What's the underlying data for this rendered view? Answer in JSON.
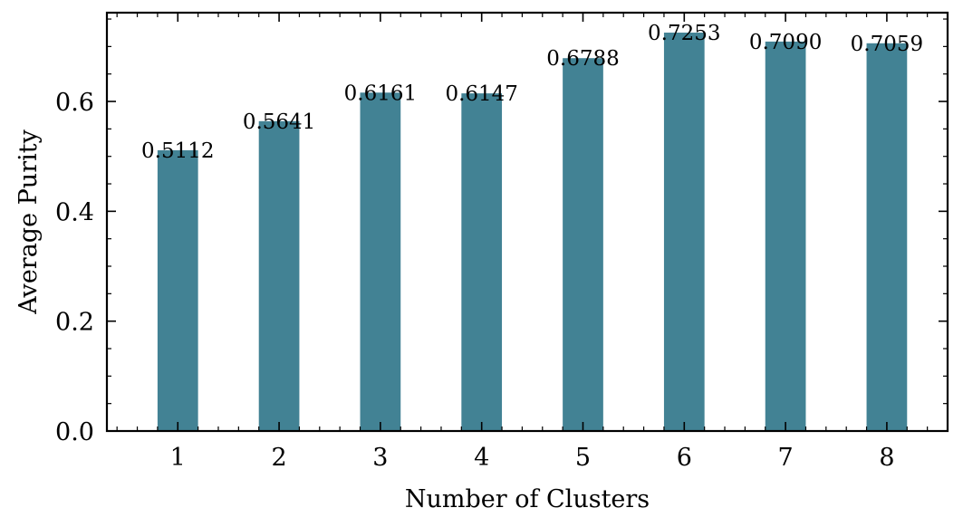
{
  "chart_data": {
    "type": "bar",
    "title": "",
    "xlabel": "Number of Clusters",
    "ylabel": "Average Purity",
    "categories": [
      "1",
      "2",
      "3",
      "4",
      "5",
      "6",
      "7",
      "8"
    ],
    "values": [
      0.5112,
      0.5641,
      0.6161,
      0.6147,
      0.6788,
      0.7253,
      0.709,
      0.7059
    ],
    "data_labels": [
      "0.5112",
      "0.5641",
      "0.6161",
      "0.6147",
      "0.6788",
      "0.7253",
      "0.7090",
      "0.7059"
    ],
    "yticks": [
      0.0,
      0.2,
      0.4,
      0.6
    ],
    "ytick_labels": [
      "0.0",
      "0.2",
      "0.4",
      "0.6"
    ],
    "ylim": [
      0.0,
      0.7616
    ],
    "xlim": [
      0.3,
      8.6
    ],
    "bar_color": "#428294",
    "grid": false,
    "legend": "none"
  }
}
